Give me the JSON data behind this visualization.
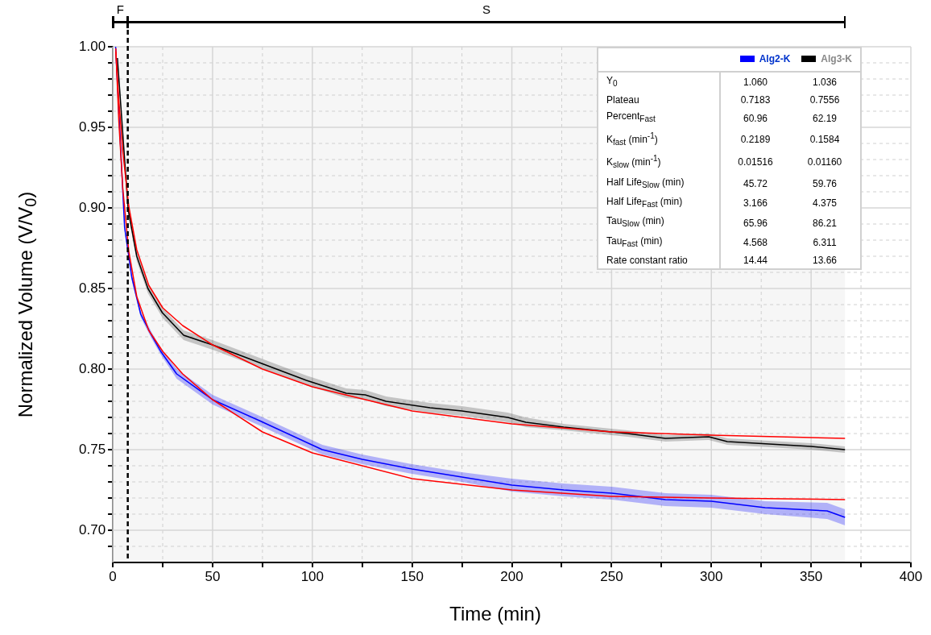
{
  "chart_data": {
    "type": "line",
    "xlabel": "Time (min)",
    "ylabel": "Normalized Volume (V/V$_{0}$)",
    "xlim": [
      0,
      400
    ],
    "ylim": [
      0.68,
      1.0
    ],
    "xticks": [
      0,
      {
        "value": 25,
        "label": null
      },
      50,
      {
        "value": 75,
        "label": null
      },
      100,
      {
        "value": 125,
        "label": null
      },
      150,
      {
        "value": 175,
        "label": null
      },
      200,
      {
        "value": 225,
        "label": null
      },
      250,
      {
        "value": 275,
        "label": null
      },
      300,
      {
        "value": 325,
        "label": null
      },
      350,
      {
        "value": 375,
        "label": null
      },
      400
    ],
    "yticks": [
      {
        "value": 0.69,
        "label": null
      },
      {
        "value": 0.7,
        "label": "0.70"
      },
      {
        "value": 0.71,
        "label": null
      },
      {
        "value": 0.72,
        "label": null
      },
      {
        "value": 0.73,
        "label": null
      },
      {
        "value": 0.74,
        "label": null
      },
      {
        "value": 0.75,
        "label": "0.75"
      },
      {
        "value": 0.76,
        "label": null
      },
      {
        "value": 0.77,
        "label": null
      },
      {
        "value": 0.78,
        "label": null
      },
      {
        "value": 0.79,
        "label": null
      },
      {
        "value": 0.8,
        "label": "0.80"
      },
      {
        "value": 0.81,
        "label": null
      },
      {
        "value": 0.82,
        "label": null
      },
      {
        "value": 0.83,
        "label": null
      },
      {
        "value": 0.84,
        "label": null
      },
      {
        "value": 0.85,
        "label": "0.85"
      },
      {
        "value": 0.86,
        "label": null
      },
      {
        "value": 0.87,
        "label": null
      },
      {
        "value": 0.88,
        "label": null
      },
      {
        "value": 0.89,
        "label": null
      },
      {
        "value": 0.9,
        "label": "0.90"
      },
      {
        "value": 0.91,
        "label": null
      },
      {
        "value": 0.92,
        "label": null
      },
      {
        "value": 0.93,
        "label": null
      },
      {
        "value": 0.94,
        "label": null
      },
      {
        "value": 0.95,
        "label": "0.95"
      },
      {
        "value": 0.96,
        "label": null
      },
      {
        "value": 0.97,
        "label": null
      },
      {
        "value": 0.98,
        "label": null
      },
      {
        "value": 0.99,
        "label": null
      },
      {
        "value": 1.0,
        "label": "1.00"
      }
    ],
    "grid": true,
    "legend": "top right",
    "line_style": "solid",
    "marker": "none",
    "series": [
      {
        "name": "Alg2-K",
        "color": "#0000ff",
        "x": [
          1.4,
          5.9,
          9.5,
          14,
          19.4,
          24,
          32,
          50,
          73.5,
          105,
          125,
          150,
          175,
          200,
          226,
          250,
          277,
          300,
          327,
          358,
          367
        ],
        "values": [
          1.0,
          0.888,
          0.857,
          0.834,
          0.821,
          0.811,
          0.797,
          0.781,
          0.768,
          0.75,
          0.744,
          0.738,
          0.733,
          0.728,
          0.725,
          0.723,
          0.719,
          0.718,
          0.714,
          0.712,
          0.708
        ],
        "lower": [
          0.998,
          0.886,
          0.855,
          0.832,
          0.819,
          0.809,
          0.794,
          0.778,
          0.765,
          0.747,
          0.741,
          0.735,
          0.73,
          0.724,
          0.721,
          0.719,
          0.715,
          0.714,
          0.71,
          0.707,
          0.703
        ],
        "upper": [
          1.0,
          0.89,
          0.859,
          0.836,
          0.823,
          0.813,
          0.8,
          0.784,
          0.771,
          0.753,
          0.747,
          0.741,
          0.736,
          0.732,
          0.729,
          0.727,
          0.723,
          0.722,
          0.718,
          0.717,
          0.713
        ]
      },
      {
        "name": "Alg3-K",
        "color": "#000000",
        "x": [
          2.3,
          7.7,
          12,
          17.6,
          24.8,
          35.5,
          50,
          73.5,
          97,
          117,
          126.5,
          137,
          159,
          175,
          198,
          207,
          226,
          258,
          277,
          298.7,
          308,
          350,
          367
        ],
        "values": [
          0.993,
          0.899,
          0.87,
          0.85,
          0.835,
          0.821,
          0.815,
          0.804,
          0.793,
          0.785,
          0.784,
          0.78,
          0.776,
          0.774,
          0.77,
          0.767,
          0.764,
          0.76,
          0.757,
          0.758,
          0.755,
          0.752,
          0.75
        ],
        "lower": [
          0.991,
          0.896,
          0.867,
          0.847,
          0.832,
          0.818,
          0.812,
          0.801,
          0.79,
          0.782,
          0.781,
          0.777,
          0.773,
          0.771,
          0.767,
          0.764,
          0.762,
          0.758,
          0.755,
          0.756,
          0.753,
          0.75,
          0.748
        ],
        "upper": [
          0.995,
          0.902,
          0.873,
          0.853,
          0.838,
          0.824,
          0.818,
          0.807,
          0.796,
          0.788,
          0.787,
          0.783,
          0.779,
          0.777,
          0.773,
          0.77,
          0.766,
          0.762,
          0.759,
          0.76,
          0.757,
          0.754,
          0.752
        ]
      },
      {
        "type": "line",
        "color": "#ff0000",
        "x": [
          1.5,
          3,
          5,
          8,
          12,
          18,
          25,
          35,
          50,
          75,
          100,
          150,
          200,
          250,
          300,
          367
        ],
        "values": [
          0.999,
          0.954,
          0.912,
          0.873,
          0.845,
          0.824,
          0.811,
          0.797,
          0.781,
          0.761,
          0.748,
          0.732,
          0.725,
          0.721,
          0.72,
          0.719
        ]
      },
      {
        "type": "line",
        "color": "#ff0000",
        "x": [
          1.5,
          3,
          5,
          8,
          12,
          18,
          25,
          35,
          50,
          75,
          100,
          150,
          200,
          250,
          300,
          367
        ],
        "values": [
          0.997,
          0.967,
          0.935,
          0.901,
          0.874,
          0.852,
          0.838,
          0.827,
          0.815,
          0.8,
          0.789,
          0.774,
          0.766,
          0.761,
          0.759,
          0.757
        ]
      }
    ],
    "ref_lines": [
      {
        "axis": "x",
        "value": 7.5,
        "color": "#000000",
        "line_style": "dashed"
      }
    ],
    "bands": [
      {
        "axis": "x",
        "from": 0,
        "to": 7.5,
        "label": "F",
        "color": "#000000"
      },
      {
        "axis": "x",
        "from": 7.5,
        "to": 367,
        "label": "S",
        "color": "#000000"
      }
    ],
    "annotations": [
      "Y$_{0}$",
      "1.060",
      "1.036",
      "Plateau",
      "0.7183",
      "0.7556",
      "Percent$_{Fast}$",
      "60.96",
      "62.19",
      "K$_{fast}$ (min$^{-1}$)",
      "0.2189",
      "0.1584",
      "K$_{slow}$ (min$^{-1}$)",
      "0.01516",
      "0.01160",
      "Half Life$_{Slow}$ (min)",
      "45.72",
      "59.76",
      "Half Life$_{Fast}$ (min)",
      "3.166",
      "4.375",
      "Tau$_{Slow}$ (min)",
      "65.96",
      "86.21",
      "Tau$_{Fast}$ (min)",
      "4.568",
      "6.311",
      "Rate constant ratio",
      "14.44",
      "13.66"
    ]
  }
}
